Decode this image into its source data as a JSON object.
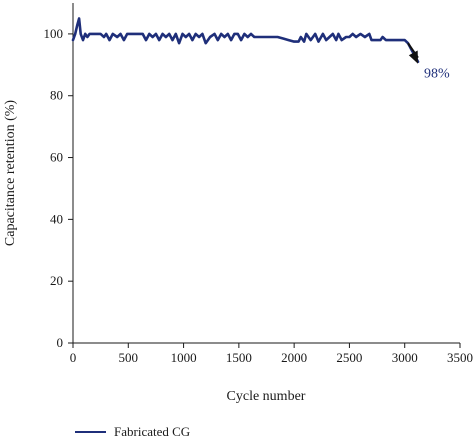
{
  "chart_data": {
    "type": "line",
    "title": "",
    "xlabel": "Cycle number",
    "ylabel": "Capacitance retention (%)",
    "xlim": [
      0,
      3500
    ],
    "ylim": [
      0,
      110
    ],
    "xticks": [
      0,
      500,
      1000,
      1500,
      2000,
      2500,
      3000,
      3500
    ],
    "yticks": [
      0,
      20,
      40,
      60,
      80,
      100
    ],
    "grid": false,
    "legend_position": "bottom-left",
    "series": [
      {
        "name": "Fabricated CG",
        "color": "#1f2f7a",
        "x": [
          0,
          20,
          40,
          55,
          70,
          90,
          110,
          130,
          150,
          200,
          250,
          280,
          300,
          330,
          360,
          400,
          430,
          460,
          490,
          520,
          560,
          600,
          630,
          660,
          690,
          720,
          750,
          780,
          810,
          840,
          870,
          900,
          930,
          960,
          990,
          1020,
          1050,
          1080,
          1110,
          1140,
          1170,
          1200,
          1240,
          1280,
          1310,
          1340,
          1370,
          1400,
          1430,
          1460,
          1490,
          1520,
          1550,
          1580,
          1610,
          1640,
          1680,
          1720,
          1780,
          1850,
          1900,
          1950,
          2000,
          2040,
          2060,
          2090,
          2110,
          2150,
          2190,
          2220,
          2260,
          2290,
          2320,
          2350,
          2380,
          2400,
          2430,
          2470,
          2500,
          2530,
          2560,
          2600,
          2640,
          2680,
          2700,
          2730,
          2780,
          2800,
          2830,
          2880,
          2920,
          2960,
          3000,
          3030,
          3060,
          3090,
          3120
        ],
        "y": [
          98,
          100,
          103,
          105,
          100,
          98,
          100,
          99,
          100,
          100,
          100,
          99,
          100,
          98,
          100,
          99,
          100,
          98,
          100,
          100,
          100,
          100,
          100,
          98,
          100,
          99,
          100,
          98,
          100,
          99,
          100,
          98,
          100,
          97,
          100,
          99,
          100,
          98,
          100,
          99,
          100,
          97,
          99,
          100,
          98,
          100,
          99,
          100,
          98,
          100,
          100,
          98,
          100,
          99,
          100,
          99,
          99,
          99,
          99,
          99,
          98.5,
          98,
          97.5,
          97.5,
          99,
          97.5,
          100,
          98,
          100,
          97.5,
          100,
          98,
          99,
          100,
          98,
          100,
          98,
          99,
          99,
          100,
          99,
          100,
          99,
          100,
          98,
          98,
          98,
          99,
          98,
          98,
          98,
          98,
          98,
          97,
          95,
          93,
          91
        ]
      }
    ],
    "annotations": [
      {
        "text": "98%"
      }
    ]
  }
}
